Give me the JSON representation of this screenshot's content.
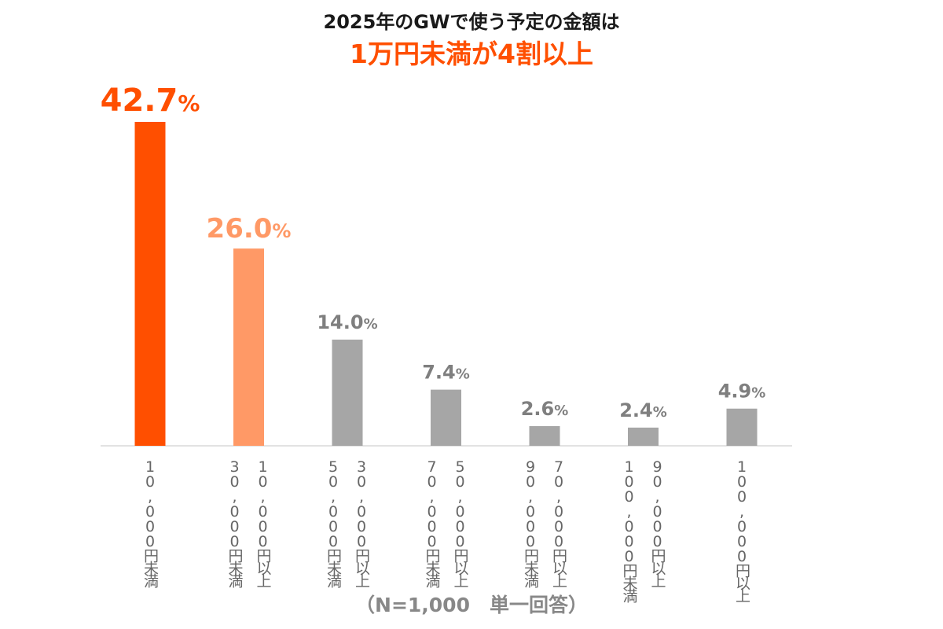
{
  "chart_data": {
    "type": "bar",
    "title": "2025年のGWで使う予定の金額は",
    "subtitle": "1万円未満が4割以上",
    "categories": [
      [
        "10,000円未満"
      ],
      [
        "10,000円以上",
        "30,000円未満"
      ],
      [
        "30,000円以上",
        "50,000円未満"
      ],
      [
        "50,000円以上",
        "70,000円未満"
      ],
      [
        "70,000円以上",
        "90,000円未満"
      ],
      [
        "90,000円以上",
        "100,000円未満"
      ],
      [
        "100,000円以上"
      ]
    ],
    "values": [
      42.7,
      26.0,
      14.0,
      7.4,
      2.6,
      2.4,
      4.9
    ],
    "value_labels": [
      "42.7",
      "26.0",
      "14.0",
      "7.4",
      "2.6",
      "2.4",
      "4.9"
    ],
    "unit": "%",
    "colors": [
      "#ff4f00",
      "#ff9966",
      "#a6a6a6",
      "#a6a6a6",
      "#a6a6a6",
      "#a6a6a6",
      "#a6a6a6"
    ],
    "label_colors": [
      "#ff4f00",
      "#ff9966",
      "#7f7f7f",
      "#7f7f7f",
      "#7f7f7f",
      "#7f7f7f",
      "#7f7f7f"
    ],
    "ylim": [
      0,
      45
    ],
    "grid": false,
    "legend": "none",
    "footnote": "（N=1,000　単一回答）"
  }
}
